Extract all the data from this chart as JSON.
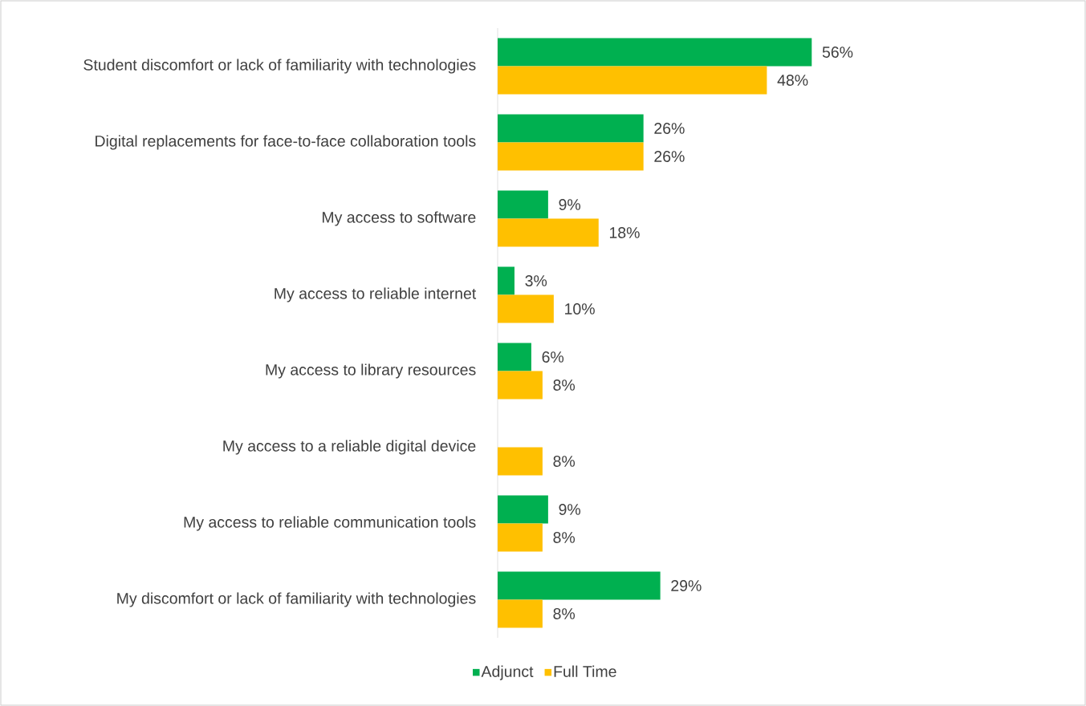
{
  "chart_data": {
    "type": "bar",
    "orientation": "horizontal",
    "categories": [
      "Student discomfort or lack of familiarity with technologies",
      "Digital replacements for face-to-face collaboration tools",
      "My access to software",
      "My access to reliable internet",
      "My access to library resources",
      "My access to a reliable digital device",
      "My access to reliable communication tools",
      "My discomfort or lack of familiarity with technologies"
    ],
    "series": [
      {
        "name": "Adjunct",
        "color": "#00b050",
        "values": [
          56,
          26,
          9,
          3,
          6,
          null,
          9,
          29
        ],
        "value_labels": [
          "56%",
          "26%",
          "9%",
          "3%",
          "6%",
          null,
          "9%",
          "29%"
        ]
      },
      {
        "name": "Full Time",
        "color": "#ffc000",
        "values": [
          48,
          26,
          18,
          10,
          8,
          8,
          8,
          8
        ],
        "value_labels": [
          "48%",
          "26%",
          "18%",
          "10%",
          "8%",
          "8%",
          "8%",
          "8%"
        ]
      }
    ],
    "legend": "bottom"
  }
}
